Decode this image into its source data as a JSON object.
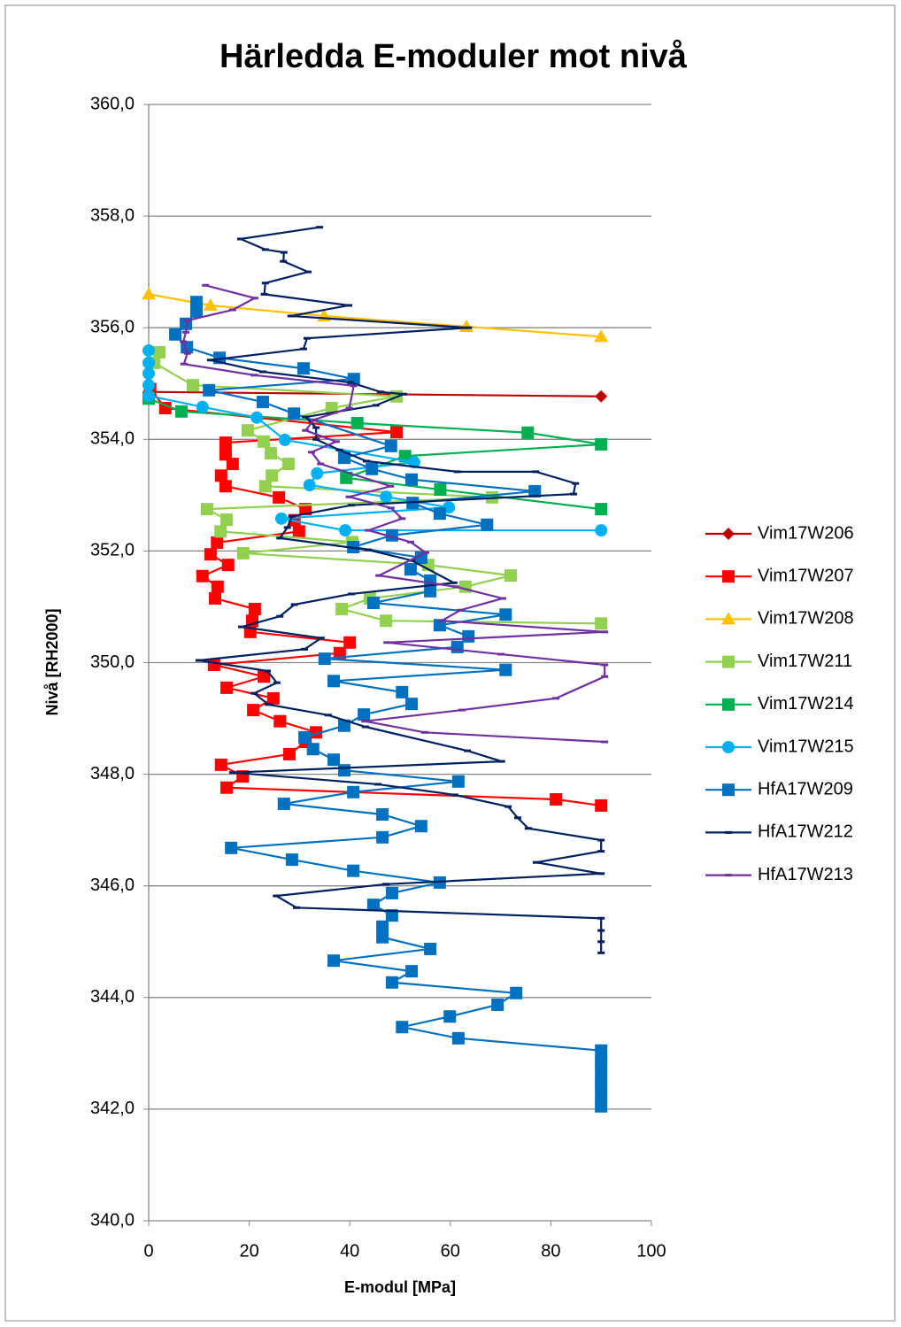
{
  "chart_data": {
    "type": "line",
    "title": "Härledda E-moduler mot nivå",
    "x_label": "E-modul [MPa]",
    "y_label": "Nivå [RH2000]",
    "xlim": [
      0,
      100
    ],
    "xticks": [
      0,
      20,
      40,
      60,
      80,
      100
    ],
    "ylim": [
      340,
      360
    ],
    "yticks": [
      {
        "value": 340,
        "label": "340,0"
      },
      {
        "value": 342,
        "label": "342,0"
      },
      {
        "value": 344,
        "label": "344,0"
      },
      {
        "value": 346,
        "label": "346,0"
      },
      {
        "value": 348,
        "label": "348,0"
      },
      {
        "value": 350,
        "label": "350,0"
      },
      {
        "value": 352,
        "label": "352,0"
      },
      {
        "value": 354,
        "label": "354,0"
      },
      {
        "value": 356,
        "label": "356,0"
      },
      {
        "value": 358,
        "label": "358,0"
      },
      {
        "value": 360,
        "label": "360,0"
      }
    ],
    "grid": true,
    "legend": "right",
    "series": [
      {
        "name": "Vim17W206",
        "color": "#c00000",
        "marker": "diamond",
        "x": [
          0,
          90
        ],
        "values": [
          354.85,
          354.77
        ]
      },
      {
        "name": "Vim17W207",
        "color": "#ff0000",
        "marker": "square",
        "x": [
          0.3,
          3.3,
          49.3,
          15.3,
          15.3,
          16.7,
          14.4,
          15.3,
          25.9,
          31.2,
          29,
          29.9,
          13.6,
          12.3,
          15.8,
          10.7,
          13.7,
          13.2,
          21.1,
          20.6,
          20.2,
          40,
          38,
          13,
          22.9,
          15.5,
          24.8,
          20.8,
          26.1,
          33.3,
          31.2,
          28,
          14.4,
          18.7,
          15.5,
          81,
          90
        ],
        "values": [
          354.9,
          354.56,
          354.13,
          353.94,
          353.73,
          353.56,
          353.35,
          353.16,
          352.96,
          352.75,
          352.55,
          352.35,
          352.15,
          351.94,
          351.75,
          351.55,
          351.36,
          351.15,
          350.96,
          350.75,
          350.55,
          350.36,
          350.17,
          349.96,
          349.75,
          349.55,
          349.36,
          349.15,
          348.95,
          348.75,
          348.58,
          348.36,
          348.17,
          347.96,
          347.76,
          347.55,
          347.44
        ]
      },
      {
        "name": "Vim17W208",
        "color": "#ffc000",
        "marker": "triangle",
        "x": [
          0,
          12.3,
          34.9,
          63.2,
          90
        ],
        "values": [
          356.6,
          356.4,
          356.21,
          356.02,
          355.84
        ]
      },
      {
        "name": "Vim17W211",
        "color": "#92d050",
        "marker": "square",
        "x": [
          2.1,
          1.1,
          8.8,
          49.3,
          36.4,
          19.7,
          22.9,
          24.3,
          27.8,
          24.5,
          23.2,
          68.3,
          11.6,
          15.5,
          14.3,
          40.5,
          18.8,
          55.6,
          72,
          63,
          44,
          38.4,
          47.2,
          90
        ],
        "values": [
          355.56,
          355.37,
          354.97,
          354.77,
          354.56,
          354.16,
          353.96,
          353.75,
          353.56,
          353.35,
          353.16,
          352.96,
          352.75,
          352.56,
          352.35,
          352.16,
          351.96,
          351.75,
          351.56,
          351.36,
          351.15,
          350.96,
          350.75,
          350.7
        ]
      },
      {
        "name": "Vim17W214",
        "color": "#00b050",
        "marker": "square",
        "x": [
          0,
          6.5,
          41.5,
          75.4,
          90,
          51,
          39.3,
          58,
          90
        ],
        "values": [
          354.73,
          354.5,
          354.29,
          354.12,
          353.91,
          353.7,
          353.31,
          353.1,
          352.75
        ]
      },
      {
        "name": "Vim17W215",
        "color": "#00b0f0",
        "marker": "circle",
        "x": [
          0,
          0,
          0,
          0,
          0,
          10.7,
          21.5,
          27.1,
          52.8,
          33.5,
          32,
          47.2,
          59.7,
          26.4,
          39.1,
          90
        ],
        "values": [
          355.59,
          355.37,
          355.18,
          354.97,
          354.78,
          354.58,
          354.39,
          353.99,
          353.59,
          353.39,
          353.18,
          352.97,
          352.78,
          352.58,
          352.37,
          352.37
        ]
      },
      {
        "name": "HfA17W209",
        "color": "#0070c0",
        "marker": "square",
        "x": [
          9.5,
          9.5,
          7.4,
          5.3,
          7.6,
          14.1,
          30.8,
          40.8,
          12,
          22.7,
          28.9,
          48.2,
          38.9,
          44.4,
          52.3,
          76.8,
          52.5,
          57.9,
          67.3,
          48.4,
          40.7,
          54.2,
          52.1,
          56,
          56,
          44.7,
          71,
          57.9,
          63.6,
          61.4,
          35,
          71,
          36.8,
          50.4,
          52.3,
          42.8,
          38.9,
          31,
          32.7,
          36.8,
          38.9,
          61.6,
          40.7,
          26.9,
          46.5,
          54.2,
          46.5,
          16.4,
          28.5,
          40.7,
          57.9,
          48.4,
          44.7,
          48.4,
          46.5,
          46.5,
          56,
          36.8,
          52.3,
          48.4,
          73.1,
          69.4,
          59.9,
          50.4,
          61.6,
          90,
          90,
          90,
          90,
          90,
          90
        ],
        "values": [
          356.46,
          356.29,
          356.07,
          355.88,
          355.65,
          355.46,
          355.27,
          355.08,
          354.88,
          354.67,
          354.46,
          353.88,
          353.67,
          353.47,
          353.28,
          353.07,
          352.86,
          352.67,
          352.47,
          352.28,
          352.07,
          351.88,
          351.67,
          351.47,
          351.28,
          351.07,
          350.86,
          350.67,
          350.47,
          350.28,
          350.07,
          349.87,
          349.67,
          349.47,
          349.26,
          349.07,
          348.87,
          348.66,
          348.45,
          348.26,
          348.07,
          347.87,
          347.68,
          347.47,
          347.28,
          347.07,
          346.87,
          346.68,
          346.47,
          346.27,
          346.06,
          345.87,
          345.66,
          345.47,
          345.27,
          345.08,
          344.87,
          344.66,
          344.47,
          344.27,
          344.08,
          343.87,
          343.66,
          343.47,
          343.27,
          343.05,
          342.85,
          342.65,
          342.45,
          342.25,
          342.05
        ]
      },
      {
        "name": "HfA17W212",
        "color": "#002060",
        "marker": "dash",
        "x": [
          34,
          18.3,
          23.2,
          26.9,
          26.8,
          31.7,
          23.2,
          23,
          39.8,
          28.3,
          63.6,
          31.5,
          30.8,
          12.3,
          22.7,
          40.1,
          46.1,
          50.7,
          45.2,
          31.2,
          33.3,
          33.3,
          37.9,
          43.3,
          61.4,
          77,
          84.9,
          84.5,
          40.3,
          28.5,
          27.6,
          26.1,
          43.7,
          52.3,
          60.7,
          40.3,
          29,
          26.1,
          18.5,
          34.3,
          31,
          10,
          23.6,
          25.5,
          21,
          23.8,
          35.7,
          43.1,
          63.4,
          70.2,
          16.7,
          45.6,
          60.9,
          71.5,
          73.4,
          75.5,
          90,
          90,
          77.1,
          90,
          47.2,
          25.4,
          29.4,
          90,
          90,
          90,
          90
        ],
        "values": [
          357.8,
          357.59,
          357.4,
          357.35,
          357.19,
          357,
          356.8,
          356.6,
          356.4,
          356.21,
          356,
          355.81,
          355.62,
          355.42,
          355.21,
          355.02,
          354.85,
          354.81,
          354.61,
          354.4,
          354.21,
          354,
          353.81,
          353.61,
          353.42,
          353.42,
          353.21,
          353.02,
          352.82,
          352.62,
          352.42,
          352.23,
          352.02,
          351.83,
          351.43,
          351.23,
          351.04,
          350.83,
          350.64,
          350.44,
          350.24,
          350.04,
          349.85,
          349.64,
          349.45,
          349.25,
          349.06,
          348.85,
          348.42,
          348.23,
          348.03,
          347.82,
          347.63,
          347.42,
          347.22,
          347.03,
          346.82,
          346.62,
          346.42,
          346.22,
          346.03,
          345.82,
          345.61,
          345.42,
          345.2,
          345,
          344.8
        ]
      },
      {
        "name": "HfA17W213",
        "color": "#7030a0",
        "marker": "dash",
        "x": [
          11.3,
          21.1,
          16.7,
          7.7,
          7.4,
          6.9,
          7.7,
          7,
          21,
          40.8,
          39.9,
          32.9,
          31.2,
          37.3,
          32.4,
          34.2,
          48.1,
          39.9,
          48.2,
          50.4,
          43.7,
          52.1,
          55.1,
          45.8,
          61.1,
          70.4,
          62,
          58.3,
          90.7,
          47.4,
          70.1,
          90.7,
          90.7,
          81,
          62.3,
          43,
          54.9,
          90.7
        ],
        "values": [
          356.76,
          356.53,
          356.32,
          356.13,
          355.92,
          355.75,
          355.54,
          355.35,
          355.15,
          354.96,
          354.56,
          354.35,
          354.16,
          353.96,
          353.77,
          353.56,
          353.16,
          352.97,
          352.77,
          352.58,
          352.37,
          352.16,
          351.97,
          351.56,
          351.36,
          351.15,
          350.94,
          350.75,
          350.55,
          350.36,
          350.15,
          349.96,
          349.75,
          349.36,
          349.15,
          348.95,
          348.75,
          348.58
        ]
      }
    ]
  }
}
